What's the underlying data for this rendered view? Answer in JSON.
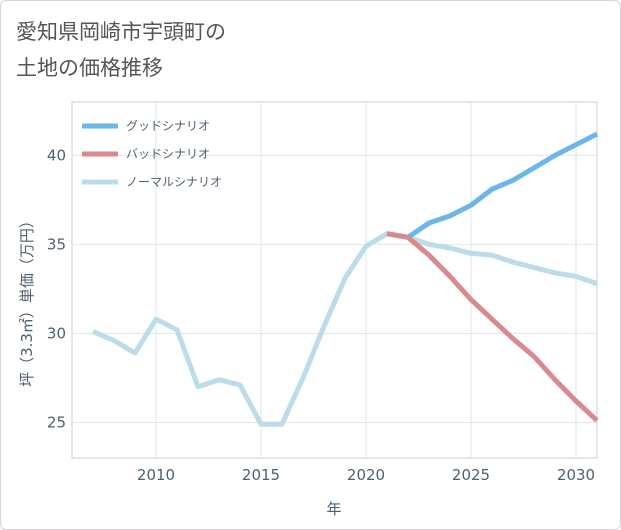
{
  "chart_data": {
    "type": "line",
    "title_lines": [
      "愛知県岡崎市宇頭町の",
      "土地の価格推移"
    ],
    "xlabel": "年",
    "ylabel": "坪（3.3㎡）単価（万円）",
    "xlim": [
      2006,
      2031
    ],
    "ylim": [
      23,
      43
    ],
    "x_ticks": [
      2010,
      2015,
      2020,
      2025,
      2030
    ],
    "y_ticks": [
      25,
      30,
      35,
      40
    ],
    "grid": true,
    "legend_position": "top-left",
    "series": [
      {
        "name": "グッドシナリオ",
        "color": "#6cb6ea",
        "x": [
          2021,
          2022,
          2023,
          2024,
          2025,
          2026,
          2027,
          2028,
          2029,
          2030,
          2031
        ],
        "y": [
          35.6,
          35.4,
          36.2,
          36.6,
          37.2,
          38.1,
          38.6,
          39.3,
          40.0,
          40.6,
          41.2
        ]
      },
      {
        "name": "バッドシナリオ",
        "color": "#d98a8e",
        "x": [
          2021,
          2022,
          2023,
          2024,
          2025,
          2026,
          2027,
          2028,
          2029,
          2030,
          2031
        ],
        "y": [
          35.6,
          35.4,
          34.4,
          33.2,
          31.9,
          30.8,
          29.7,
          28.7,
          27.4,
          26.2,
          25.1
        ]
      },
      {
        "name": "ノーマルシナリオ",
        "color": "#bcdcea",
        "x": [
          2007,
          2008,
          2009,
          2010,
          2011,
          2012,
          2013,
          2014,
          2015,
          2016,
          2017,
          2018,
          2019,
          2020,
          2021,
          2022,
          2023,
          2024,
          2025,
          2026,
          2027,
          2028,
          2029,
          2030,
          2031
        ],
        "y": [
          30.1,
          29.6,
          28.9,
          30.8,
          30.2,
          27.0,
          27.4,
          27.1,
          24.9,
          24.9,
          27.5,
          30.4,
          33.1,
          34.9,
          35.6,
          35.4,
          35.0,
          34.8,
          34.5,
          34.4,
          34.0,
          33.7,
          33.4,
          33.2,
          32.8
        ]
      }
    ]
  }
}
